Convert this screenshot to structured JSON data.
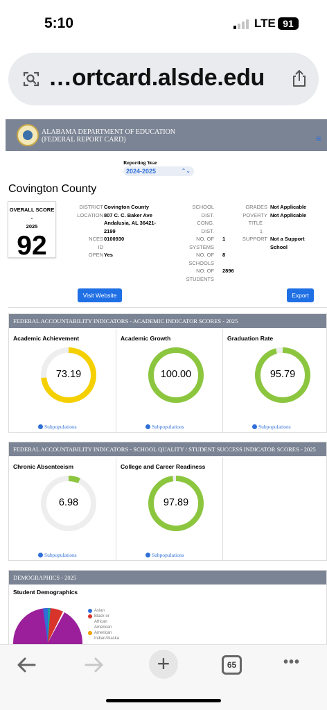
{
  "status": {
    "time": "5:10",
    "network": "LTE",
    "battery": "91"
  },
  "browser": {
    "url": "…ortcard.alsde.edu",
    "tab_count": "65"
  },
  "site": {
    "header_line1": "ALABAMA DEPARTMENT OF EDUCATION",
    "header_line2": "(FEDERAL REPORT CARD)",
    "menu_icon": "≡"
  },
  "reporting": {
    "label": "Reporting Year",
    "value": "2024-2025"
  },
  "school": {
    "name": "Covington County",
    "score_label_1": "OVERALL SCORE -",
    "score_label_2": "2025",
    "score": "92",
    "district_label": "DISTRICT",
    "district": "Covington County",
    "location_label": "LOCATION",
    "location_1": "807 C. C. Baker Ave",
    "location_2": "Andalusia, AL 36421-",
    "location_3": "2199",
    "nces_label_1": "NCES",
    "nces_label_2": "ID",
    "nces": "0100930",
    "open_label": "OPEN",
    "open": "Yes",
    "school_dist_label_1": "SCHOOL",
    "school_dist_label_2": "DIST.",
    "cong_dist_label_1": "CONG.",
    "cong_dist_label_2": "DIST.",
    "systems_label_1": "NO. OF",
    "systems_label_2": "SYSTEMS",
    "systems": "1",
    "schools_label_1": "NO. OF",
    "schools_label_2": "SCHOOLS",
    "schools": "8",
    "students_label_1": "NO. OF",
    "students_label_2": "STUDENTS",
    "students": "2896",
    "grades_label": "GRADES",
    "grades": "Not Applicable",
    "poverty_label": "POVERTY",
    "poverty": "Not Applicable",
    "title_label": "TITLE",
    "title_value": "1",
    "support_label": "SUPPORT",
    "support_1": "Not a Support",
    "support_2": "School",
    "visit_button": "Visit Website",
    "export_button": "Export"
  },
  "academic": {
    "heading": "FEDERAL ACCOUNTABILITY INDICATORS - ACADEMIC INDICATOR SCORES - 2025",
    "cards": [
      {
        "title": "Academic Achievement",
        "value": "73.19",
        "percent": 73.19,
        "color": "#f5d000"
      },
      {
        "title": "Academic Growth",
        "value": "100.00",
        "percent": 100,
        "color": "#8cc63f"
      },
      {
        "title": "Graduation Rate",
        "value": "95.79",
        "percent": 95.79,
        "color": "#8cc63f"
      }
    ],
    "subpop_label": "Subpopulations"
  },
  "quality": {
    "heading": "FEDERAL ACCOUNTABILITY INDICATORS - SCHOOL QUALITY / STUDENT SUCCESS INDICATOR SCORES - 2025",
    "cards": [
      {
        "title": "Chronic Absenteeism",
        "value": "6.98",
        "percent": 6.98,
        "color": "#8cc63f"
      },
      {
        "title": "College and Career Readiness",
        "value": "97.89",
        "percent": 97.89,
        "color": "#8cc63f"
      }
    ],
    "subpop_label": "Subpopulations"
  },
  "demographics": {
    "heading": "DEMOGRAPHICS - 2025",
    "title": "Student Demographics",
    "legend": [
      {
        "label": "Asian",
        "color": "#2f6fd8"
      },
      {
        "label_1": "Black or",
        "label_2": "African",
        "label_3": "American",
        "color": "#d9342b"
      },
      {
        "label_1": "American",
        "label_2": "Indian/Alaska",
        "color": "#f5a000"
      }
    ]
  }
}
